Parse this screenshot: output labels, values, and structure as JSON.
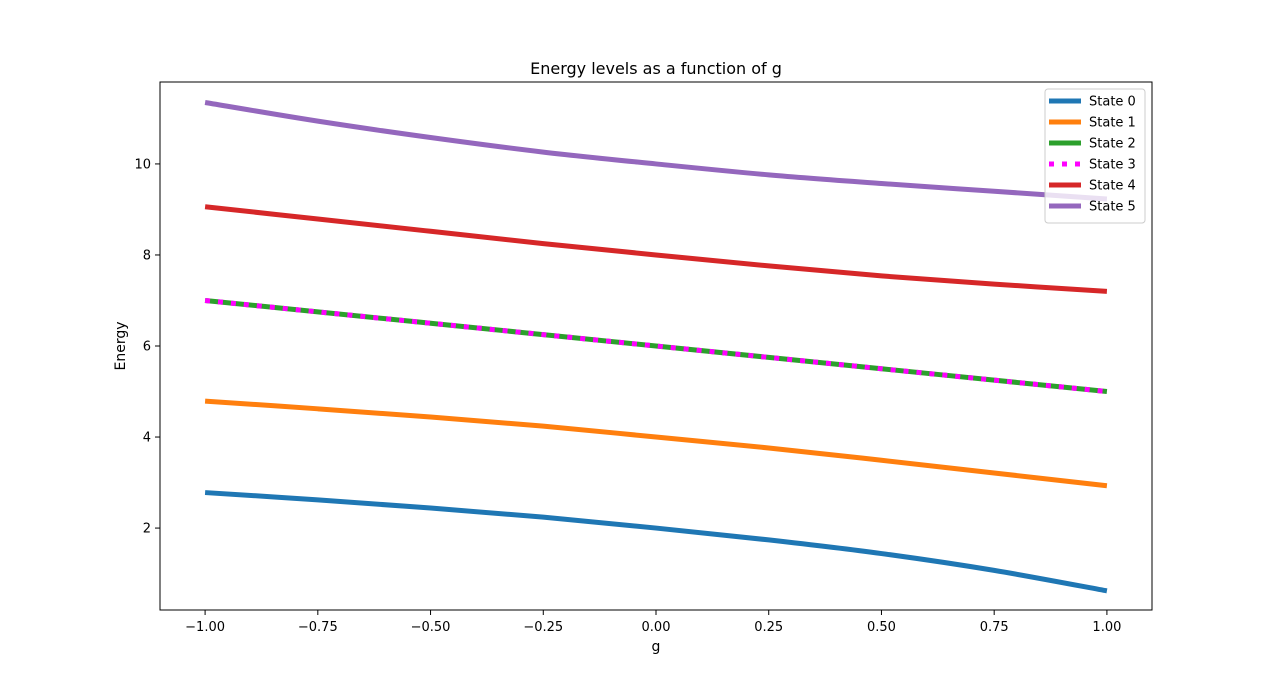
{
  "chart_data": {
    "type": "line",
    "title": "Energy levels as a function of g",
    "xlabel": "g",
    "ylabel": "Energy",
    "xlim": [
      -1.1,
      1.1
    ],
    "ylim": [
      0.2,
      11.8
    ],
    "xticks": [
      -1.0,
      -0.75,
      -0.5,
      -0.25,
      0.0,
      0.25,
      0.5,
      0.75,
      1.0
    ],
    "xtick_labels": [
      "−1.00",
      "−0.75",
      "−0.50",
      "−0.25",
      "0.00",
      "0.25",
      "0.50",
      "0.75",
      "1.00"
    ],
    "yticks": [
      2,
      4,
      6,
      8,
      10
    ],
    "ytick_labels": [
      "2",
      "4",
      "6",
      "8",
      "10"
    ],
    "grid": false,
    "legend_position": "top-right",
    "x": [
      -1.0,
      -0.75,
      -0.5,
      -0.25,
      0.0,
      0.25,
      0.5,
      0.75,
      1.0
    ],
    "series": [
      {
        "name": "State 0",
        "color": "#1f77b4",
        "style": "solid",
        "values": [
          2.78,
          2.62,
          2.44,
          2.24,
          2.0,
          1.74,
          1.44,
          1.07,
          0.62
        ]
      },
      {
        "name": "State 1",
        "color": "#ff7f0e",
        "style": "solid",
        "values": [
          4.79,
          4.62,
          4.44,
          4.24,
          4.0,
          3.76,
          3.49,
          3.21,
          2.93
        ]
      },
      {
        "name": "State 2",
        "color": "#2ca02c",
        "style": "solid",
        "values": [
          7.0,
          6.75,
          6.5,
          6.25,
          6.0,
          5.75,
          5.5,
          5.25,
          5.0
        ]
      },
      {
        "name": "State 3",
        "color": "#ff00ff",
        "style": "dotted",
        "values": [
          7.0,
          6.75,
          6.5,
          6.25,
          6.0,
          5.75,
          5.5,
          5.25,
          5.0
        ]
      },
      {
        "name": "State 4",
        "color": "#d62728",
        "style": "solid",
        "values": [
          9.06,
          8.79,
          8.52,
          8.25,
          8.0,
          7.76,
          7.54,
          7.36,
          7.2
        ]
      },
      {
        "name": "State 5",
        "color": "#9467bd",
        "style": "solid",
        "values": [
          11.35,
          10.94,
          10.58,
          10.26,
          10.0,
          9.76,
          9.57,
          9.4,
          9.23
        ]
      }
    ]
  }
}
